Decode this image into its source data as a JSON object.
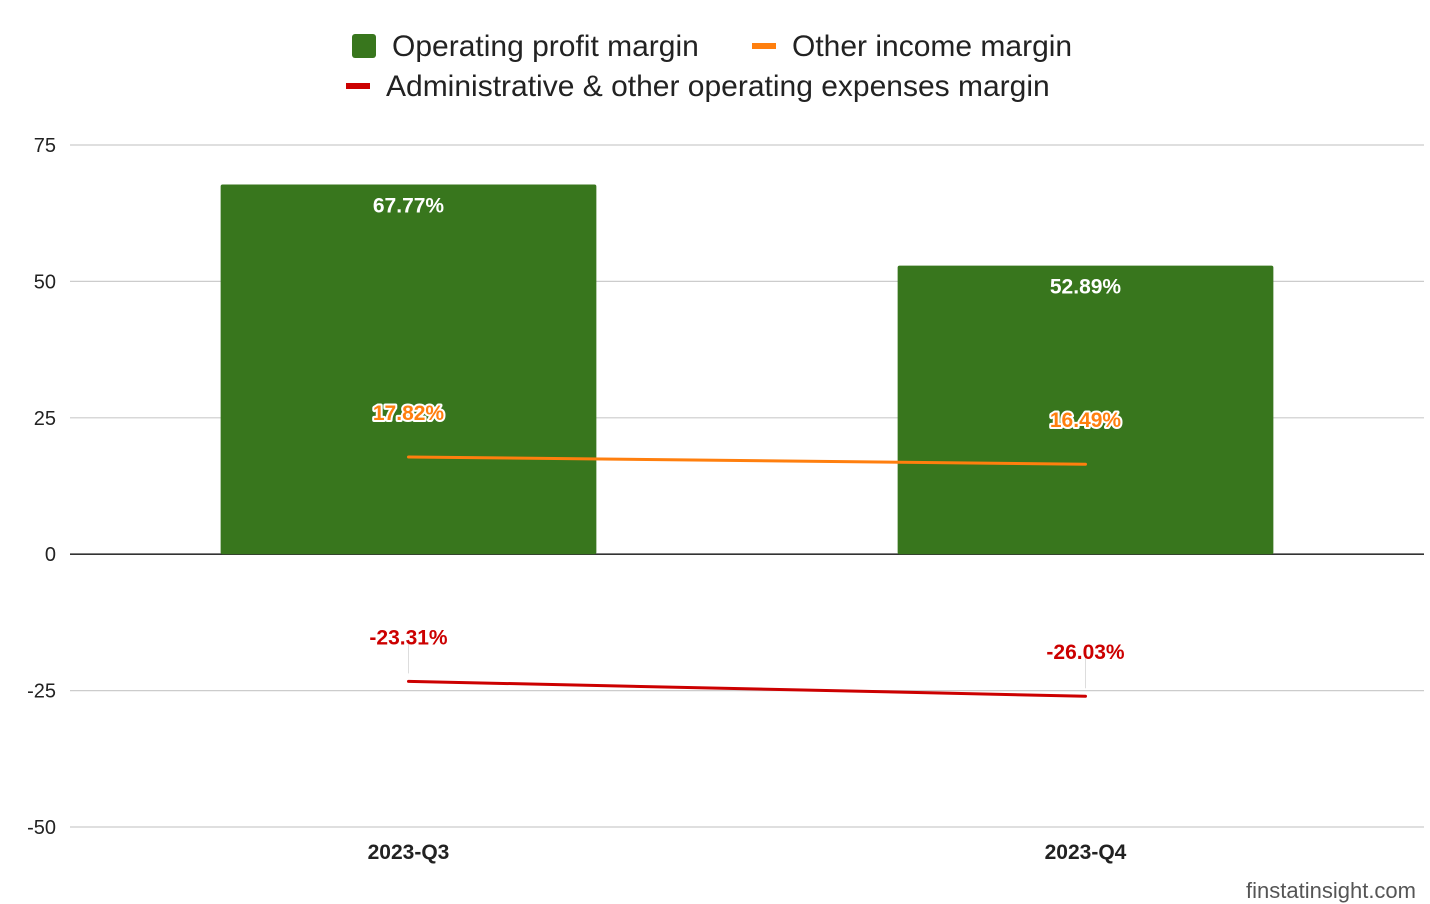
{
  "chart_data": {
    "type": "bar",
    "title": "",
    "xlabel": "",
    "ylabel": "",
    "categories": [
      "2023-Q3",
      "2023-Q4"
    ],
    "ylim": [
      -50,
      75
    ],
    "yticks": [
      75,
      50,
      25,
      0,
      -25,
      -50
    ],
    "grid": true,
    "legend_position": "top",
    "series": [
      {
        "name": "Operating profit margin",
        "kind": "bar",
        "color": "#38761d",
        "values": [
          67.77,
          52.89
        ],
        "labels": [
          "67.77%",
          "52.89%"
        ],
        "label_color": "#ffffff"
      },
      {
        "name": "Other income margin",
        "kind": "line",
        "color": "#ff7f0e",
        "values": [
          17.82,
          16.49
        ],
        "labels": [
          "17.82%",
          "16.49%"
        ],
        "label_color": "#ff7f0e"
      },
      {
        "name": "Administrative & other operating expenses margin",
        "kind": "line",
        "color": "#cc0000",
        "values": [
          -23.31,
          -26.03
        ],
        "labels": [
          "-23.31%",
          "-26.03%"
        ],
        "label_color": "#cc0000"
      }
    ]
  },
  "watermark": "finstatinsight.com"
}
